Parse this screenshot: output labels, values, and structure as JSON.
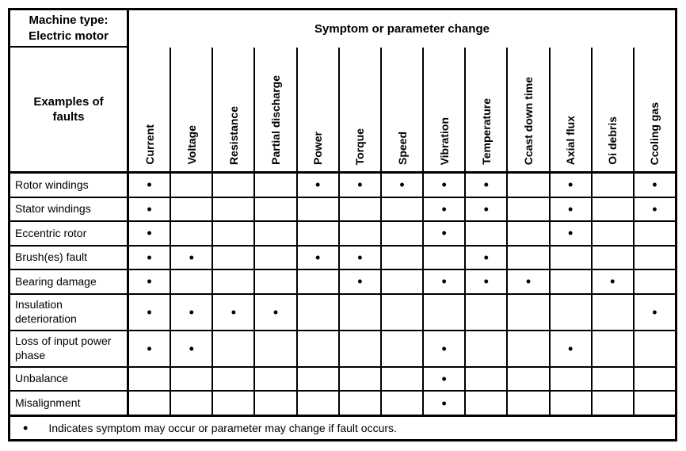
{
  "colors": {
    "ink": "#000000",
    "paper": "#ffffff"
  },
  "table": {
    "corner_title_line1": "Machine type:",
    "corner_title_line2": "Electric motor",
    "row_header_line1": "Examples of",
    "row_header_line2": "faults",
    "span_header": "Symptom or parameter change",
    "columns": [
      "Current",
      "Voltage",
      "Resistance",
      "Partial discharge",
      "Power",
      "Torque",
      "Speed",
      "Vibration",
      "Temperature",
      "Ccast down time",
      "Axial flux",
      "Oi debris",
      "Ccoling gas"
    ],
    "rows": [
      {
        "label": "Rotor windings",
        "dots": [
          1,
          0,
          0,
          0,
          1,
          1,
          1,
          1,
          1,
          0,
          1,
          0,
          1
        ]
      },
      {
        "label": "Stator windings",
        "dots": [
          1,
          0,
          0,
          0,
          0,
          0,
          0,
          1,
          1,
          0,
          1,
          0,
          1
        ]
      },
      {
        "label": "Eccentric rotor",
        "dots": [
          1,
          0,
          0,
          0,
          0,
          0,
          0,
          1,
          0,
          0,
          1,
          0,
          0
        ]
      },
      {
        "label": "Brush(es) fault",
        "dots": [
          1,
          1,
          0,
          0,
          1,
          1,
          0,
          0,
          1,
          0,
          0,
          0,
          0
        ]
      },
      {
        "label": "Bearing damage",
        "dots": [
          1,
          0,
          0,
          0,
          0,
          1,
          0,
          1,
          1,
          1,
          0,
          1,
          0
        ]
      },
      {
        "label": "Insulation deterioration",
        "dots": [
          1,
          1,
          1,
          1,
          0,
          0,
          0,
          0,
          0,
          0,
          0,
          0,
          1
        ]
      },
      {
        "label": "Loss of input power phase",
        "dots": [
          1,
          1,
          0,
          0,
          0,
          0,
          0,
          1,
          0,
          0,
          1,
          0,
          0
        ]
      },
      {
        "label": "Unbalance",
        "dots": [
          0,
          0,
          0,
          0,
          0,
          0,
          0,
          1,
          0,
          0,
          0,
          0,
          0
        ]
      },
      {
        "label": "Misalignment",
        "dots": [
          0,
          0,
          0,
          0,
          0,
          0,
          0,
          1,
          0,
          0,
          0,
          0,
          0
        ]
      }
    ],
    "dot_symbol": "•",
    "footnote": "Indicates symptom may occur or parameter may change if fault occurs."
  }
}
